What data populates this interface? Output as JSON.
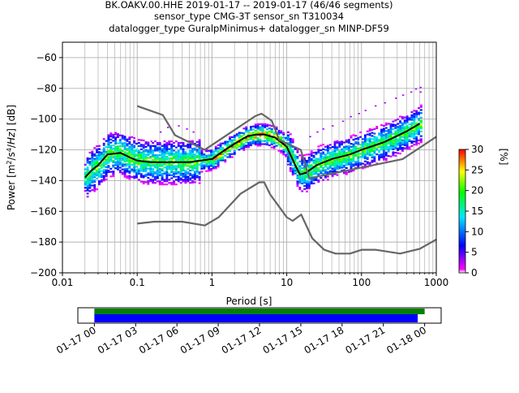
{
  "title": {
    "line1": "BK.OAKV.00.HHE   2019-01-17 -- 2019-01-17  (46/46 segments)",
    "line2": "sensor_type CMG-3T sensor_sn T310034",
    "line3": "datalogger_type GuralpMinimus+ datalogger_sn MINP-DF59"
  },
  "chart_data": [
    {
      "type": "heatmap",
      "subtype": "probabilistic-power-spectral-density",
      "xlabel": "Period [s]",
      "ylabel": "Power [m²/s⁴/Hz] [dB]",
      "xscale": "log",
      "xlim": [
        0.01,
        1000
      ],
      "ylim": [
        -200,
        -50
      ],
      "xticks": [
        0.01,
        0.1,
        1,
        10,
        100,
        1000
      ],
      "xtick_labels": [
        "0.01",
        "0.1",
        "1",
        "10",
        "100",
        "1000"
      ],
      "yticks": [
        -200,
        -180,
        -160,
        -140,
        -120,
        -100,
        -80,
        -60
      ],
      "ytick_labels": [
        "−200",
        "−180",
        "−160",
        "−140",
        "−120",
        "−100",
        "−80",
        "−60"
      ],
      "grid": true,
      "colorbar": {
        "label": "[%]",
        "range": [
          0,
          30
        ],
        "ticks": [
          0,
          5,
          10,
          15,
          20,
          25,
          30
        ],
        "colormap": [
          "#ffffff",
          "#ff00ff",
          "#0000ff",
          "#00e5ff",
          "#00ff00",
          "#ffff00",
          "#ff0000"
        ]
      },
      "series": [
        {
          "role": "mode",
          "color": "#000000",
          "x": [
            0.02,
            0.025,
            0.03,
            0.04,
            0.06,
            0.08,
            0.1,
            0.15,
            0.2,
            0.3,
            0.5,
            0.7,
            1,
            1.5,
            2,
            3,
            4,
            5,
            7,
            10,
            13,
            15,
            18,
            25,
            40,
            70,
            100,
            200,
            400,
            600
          ],
          "y": [
            -138,
            -133,
            -130,
            -123,
            -122,
            -125,
            -127,
            -128,
            -128,
            -128,
            -128,
            -127,
            -126,
            -120,
            -116,
            -111,
            -110,
            -110,
            -112,
            -118,
            -130,
            -136,
            -135,
            -130,
            -126,
            -123,
            -120,
            -115,
            -108,
            -103
          ]
        },
        {
          "role": "noise-model-high",
          "color": "#666666",
          "x": [
            0.1,
            0.22,
            0.32,
            0.8,
            3.8,
            4.6,
            6.3,
            7.9,
            15.4,
            20,
            354.8,
            1000
          ],
          "y": [
            -91.5,
            -97.4,
            -110.5,
            -120.0,
            -98.0,
            -96.5,
            -101.0,
            -113.5,
            -120.0,
            -138.5,
            -126.0,
            -111.5
          ]
        },
        {
          "role": "noise-model-low",
          "color": "#666666",
          "x": [
            0.1,
            0.17,
            0.4,
            0.8,
            1.24,
            2.4,
            4.3,
            5.0,
            6.0,
            10.0,
            12.0,
            15.6,
            21.9,
            31.6,
            45.0,
            70.0,
            101.0,
            154.0,
            328.0,
            600.0,
            1000.0
          ],
          "y": [
            -168.0,
            -166.7,
            -166.7,
            -169.2,
            -163.7,
            -148.6,
            -141.1,
            -141.1,
            -149.0,
            -163.8,
            -166.2,
            -162.1,
            -177.5,
            -185.0,
            -187.5,
            -187.5,
            -185.0,
            -185.0,
            -187.5,
            -184.4,
            -178.3
          ]
        }
      ]
    },
    {
      "type": "timeline",
      "xtick_labels": [
        "01-17 00",
        "01-17 03",
        "01-17 06",
        "01-17 09",
        "01-17 12",
        "01-17 15",
        "01-17 18",
        "01-17 21",
        "01-18 00"
      ],
      "xticks_hours": [
        0,
        3,
        6,
        9,
        12,
        15,
        18,
        21,
        24
      ],
      "xlim_hours": [
        -1.2,
        25.2
      ],
      "series": [
        {
          "role": "data-coverage",
          "color": "#008000",
          "start_hours": 0,
          "end_hours": 24.0
        },
        {
          "role": "psd-coverage",
          "color": "#0000ff",
          "start_hours": 0,
          "end_hours": 23.5
        }
      ]
    }
  ]
}
